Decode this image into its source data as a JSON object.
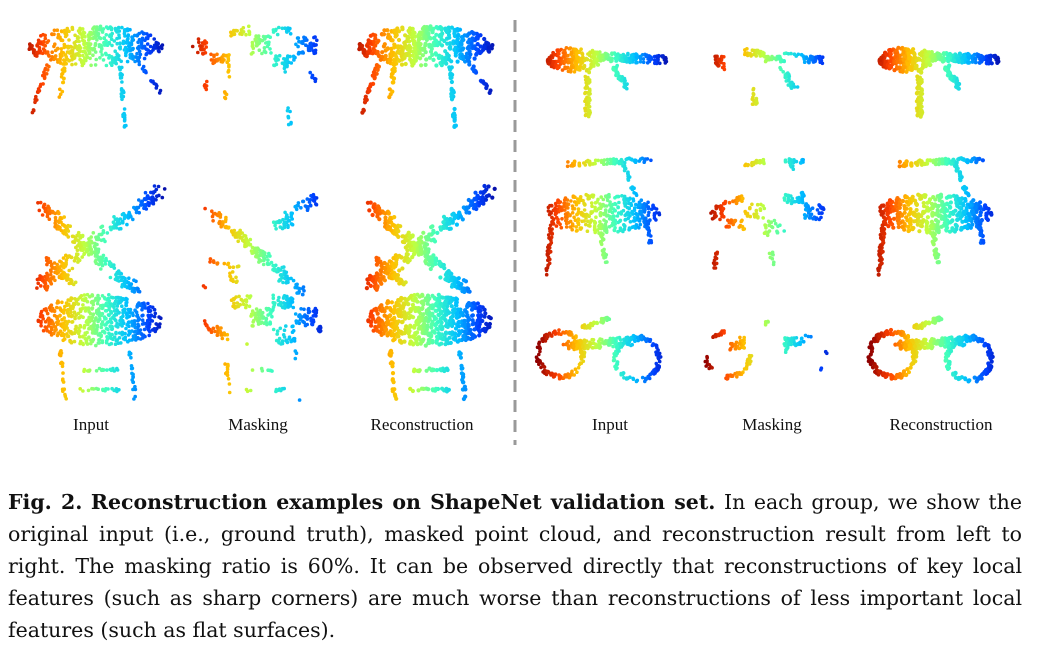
{
  "figure": {
    "groups": [
      {
        "name": "left-group",
        "labels": [
          "Input",
          "Masking",
          "Reconstruction"
        ],
        "objects": [
          "table",
          "airplane",
          "lamp"
        ]
      },
      {
        "name": "right-group",
        "labels": [
          "Input",
          "Masking",
          "Reconstruction"
        ],
        "objects": [
          "gun",
          "chair",
          "motorbike"
        ]
      }
    ],
    "colormap": [
      "#08008f",
      "#0040ff",
      "#00c0ff",
      "#40ffbf",
      "#bfff40",
      "#ffc000",
      "#ff4000",
      "#8f0000"
    ]
  },
  "caption": {
    "label": "Fig. 2.",
    "title": "Reconstruction examples on ShapeNet validation set.",
    "body": "In each group, we show the original input (i.e., ground truth), masked point cloud, and reconstruction result from left to right. The masking ratio is 60%. It can be observed directly that reconstructions of key local features (such as sharp corners) are much worse than reconstructions of less important local features (such as flat surfaces)."
  }
}
